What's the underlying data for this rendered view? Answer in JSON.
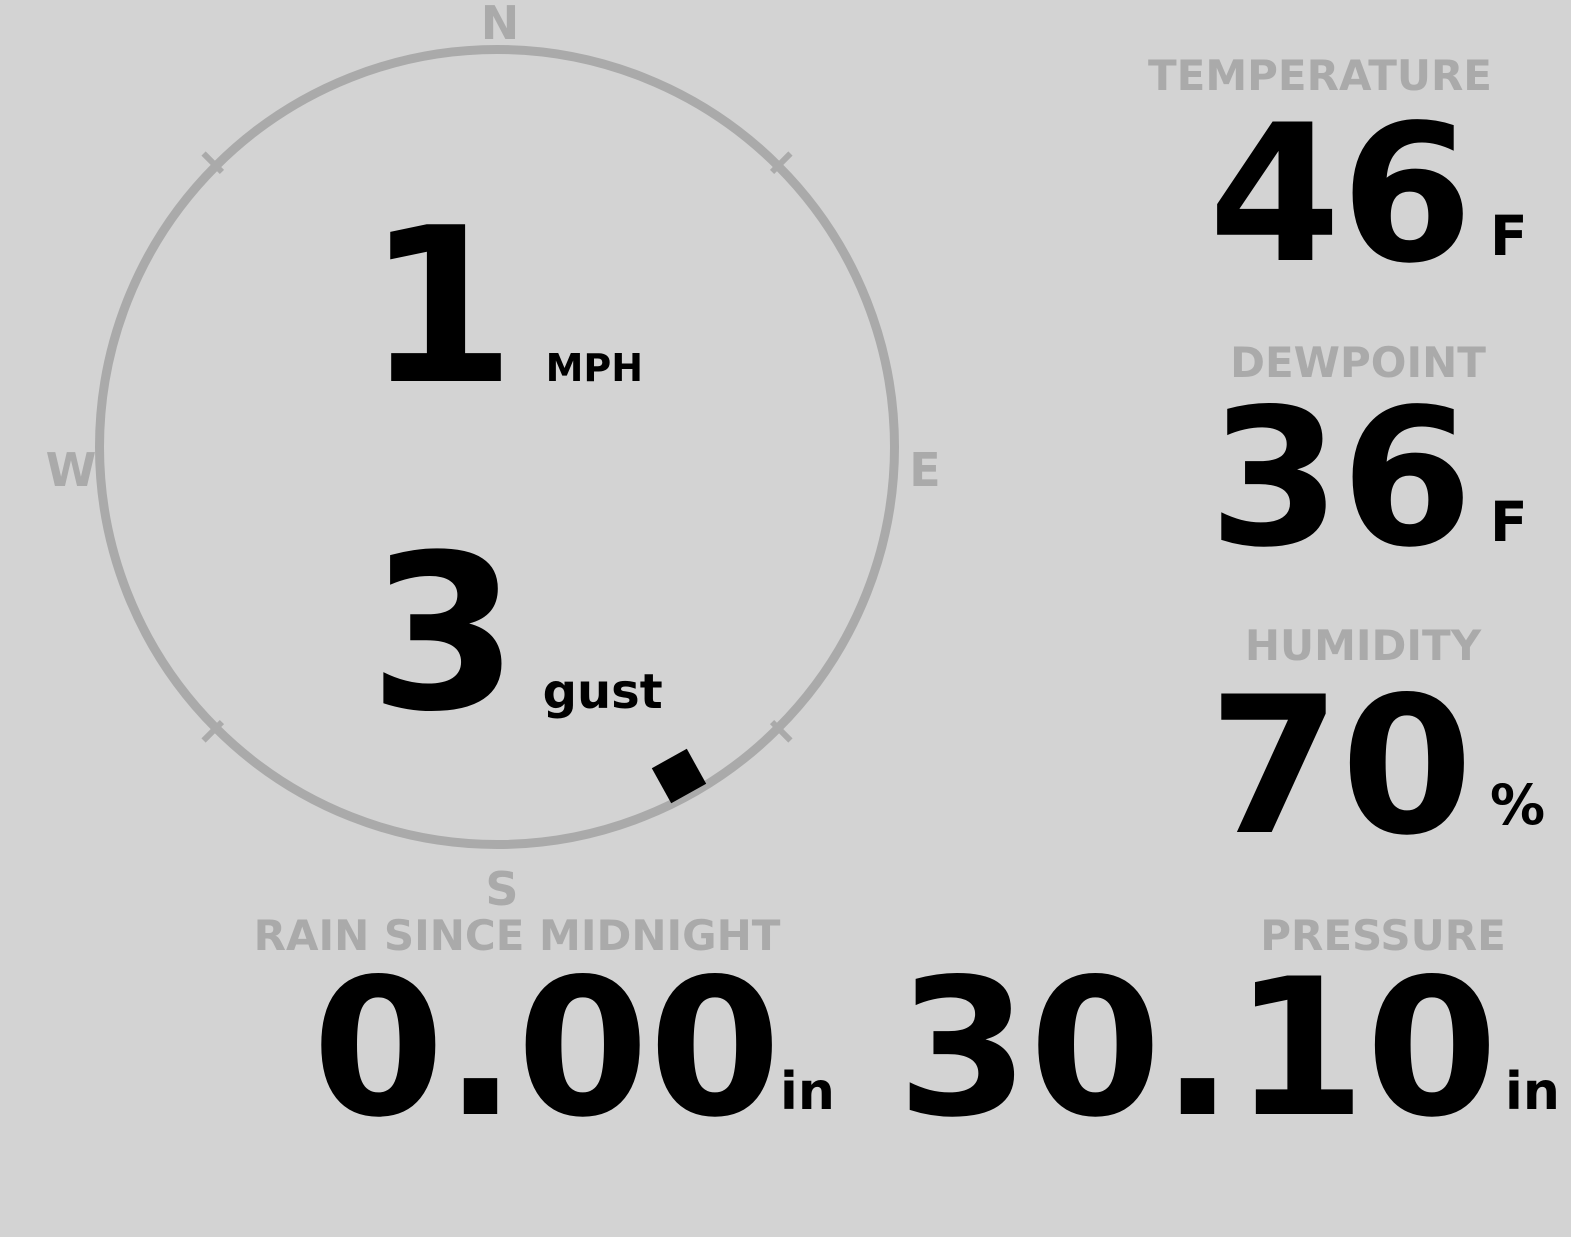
{
  "colors": {
    "background": "#d3d3d3",
    "muted_gray": "#aaaaaa",
    "value_black": "#000000"
  },
  "wind": {
    "speed": "1",
    "speed_unit": "MPH",
    "gust": "3",
    "gust_unit": "gust",
    "direction_degrees": 151,
    "compass": {
      "north": "N",
      "east": "E",
      "south": "S",
      "west": "W"
    }
  },
  "metrics": [
    {
      "id": "temperature",
      "label": "TEMPERATURE",
      "value": "46",
      "unit": "F"
    },
    {
      "id": "dewpoint",
      "label": "DEWPOINT",
      "value": "36",
      "unit": "F"
    },
    {
      "id": "humidity",
      "label": "HUMIDITY",
      "value": "70",
      "unit": "%"
    }
  ],
  "bottom": [
    {
      "id": "rain",
      "label": "RAIN SINCE MIDNIGHT",
      "value": "0.00",
      "unit": "in"
    },
    {
      "id": "pressure",
      "label": "PRESSURE",
      "value": "30.10",
      "unit": "in"
    }
  ]
}
